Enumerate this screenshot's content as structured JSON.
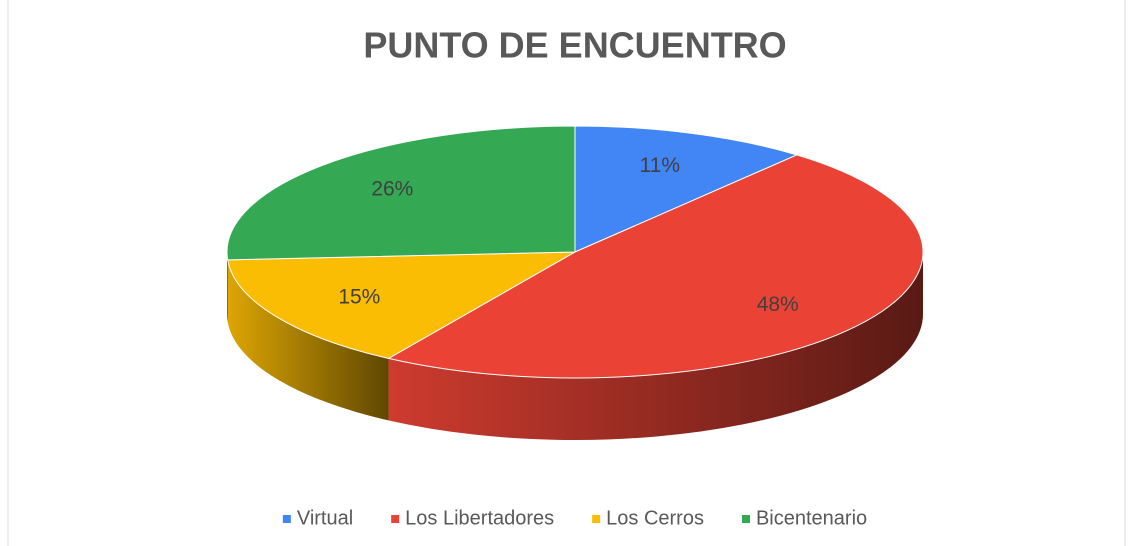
{
  "chart_data": {
    "type": "pie",
    "title": "PUNTO DE ENCUENTRO",
    "categories": [
      "Virtual",
      "Los Libertadores",
      "Los Cerros",
      "Bicentenario"
    ],
    "values": [
      11,
      48,
      15,
      26
    ],
    "value_labels": [
      "11%",
      "48%",
      "15%",
      "26%"
    ],
    "colors": [
      "#4285f4",
      "#ea4335",
      "#fbbc04",
      "#34a853"
    ],
    "legend": "bottom"
  }
}
